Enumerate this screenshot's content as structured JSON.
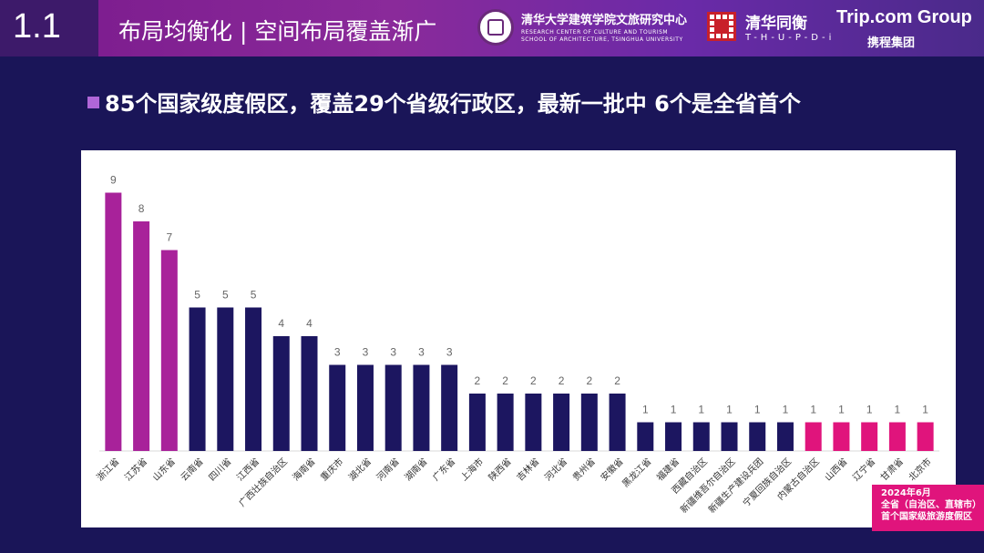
{
  "header": {
    "section_number": "1.1",
    "section_title": "布局均衡化 | 空间布局覆盖渐广",
    "logos": {
      "tsinghua_center": {
        "name": "清华大学建筑学院文旅研究中心",
        "en_line1": "RESEARCH CENTER OF CULTURE AND TOURISM",
        "en_line2": "SCHOOL OF ARCHITECTURE, TSINGHUA UNIVERSITY"
      },
      "thupdi": {
        "name": "清华同衡",
        "en": "T-H-U-P-D-i"
      },
      "tripcom": {
        "name": "Trip.com Group",
        "cn": "携程集团"
      }
    }
  },
  "headline": "85个国家级度假区，覆盖29个省级行政区，最新一批中 6个是全省首个",
  "annotation": {
    "line1": "2024年6月",
    "line2": "全省（自治区、直辖市）",
    "line3": "首个国家级旅游度假区"
  },
  "colors": {
    "header_bg": "#7a1a8c",
    "page_bg": "#1a1558",
    "bar_purple": "#a8229a",
    "bar_navy": "#1c1660",
    "bar_pink": "#e0147c",
    "annotation_bg": "#e0147c"
  },
  "chart_data": {
    "type": "bar",
    "categories": [
      "浙江省",
      "江苏省",
      "山东省",
      "云南省",
      "四川省",
      "江西省",
      "广西壮族自治区",
      "海南省",
      "重庆市",
      "湖北省",
      "河南省",
      "湖南省",
      "广东省",
      "上海市",
      "陕西省",
      "吉林省",
      "河北省",
      "贵州省",
      "安徽省",
      "黑龙江省",
      "福建省",
      "西藏自治区",
      "新疆维吾尔自治区",
      "新疆生产建设兵团",
      "宁夏回族自治区",
      "内蒙古自治区",
      "山西省",
      "辽宁省",
      "甘肃省",
      "北京市"
    ],
    "values": [
      9,
      8,
      7,
      5,
      5,
      5,
      4,
      4,
      3,
      3,
      3,
      3,
      3,
      2,
      2,
      2,
      2,
      2,
      2,
      1,
      1,
      1,
      1,
      1,
      1,
      1,
      1,
      1,
      1,
      1
    ],
    "bar_color_groups": [
      "purple",
      "purple",
      "purple",
      "navy",
      "navy",
      "navy",
      "navy",
      "navy",
      "navy",
      "navy",
      "navy",
      "navy",
      "navy",
      "navy",
      "navy",
      "navy",
      "navy",
      "navy",
      "navy",
      "navy",
      "navy",
      "navy",
      "navy",
      "navy",
      "navy",
      "pink",
      "pink",
      "pink",
      "pink",
      "pink"
    ],
    "ylim": [
      0,
      10
    ],
    "grid": false,
    "title": "",
    "xlabel": "",
    "ylabel": ""
  }
}
